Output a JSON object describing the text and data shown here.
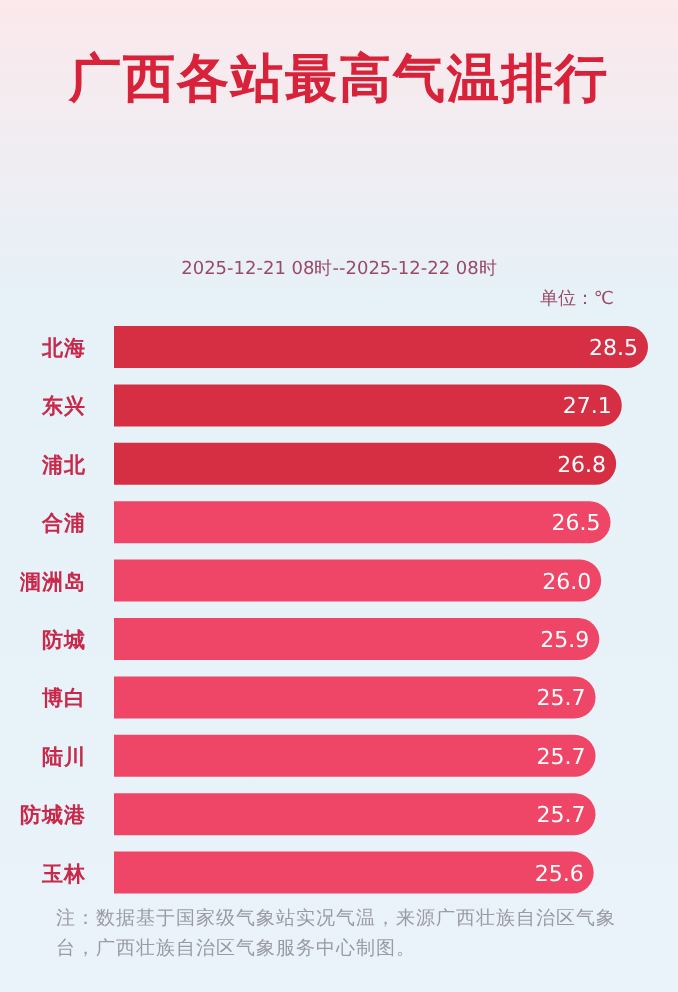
{
  "chart_data": {
    "type": "bar",
    "orientation": "horizontal",
    "title": "广西各站最高气温排行",
    "subtitle": "2025-12-21 08时--2025-12-22 08时",
    "categories": [
      "北海",
      "东兴",
      "浦北",
      "合浦",
      "涠洲岛",
      "防城",
      "博白",
      "陆川",
      "防城港",
      "玉林"
    ],
    "values": [
      28.5,
      27.1,
      26.8,
      26.5,
      26.0,
      25.9,
      25.7,
      25.7,
      25.7,
      25.6
    ],
    "colors": [
      "#d62e42",
      "#d62e42",
      "#d62e42",
      "#ef4566",
      "#ef4566",
      "#ef4566",
      "#ef4566",
      "#ef4566",
      "#ef4566",
      "#ef4566"
    ],
    "data_labels": true,
    "value_labels": [
      "28.5",
      "27.1",
      "26.8",
      "26.5",
      "26.0",
      "25.9",
      "25.7",
      "25.7",
      "25.7",
      "25.6"
    ],
    "annotations": [
      "单位：℃",
      "注：数据基于国家级气象站实况气温，来源广西壮族自治区气象台，广西壮族自治区气象服务中心制图。"
    ]
  }
}
